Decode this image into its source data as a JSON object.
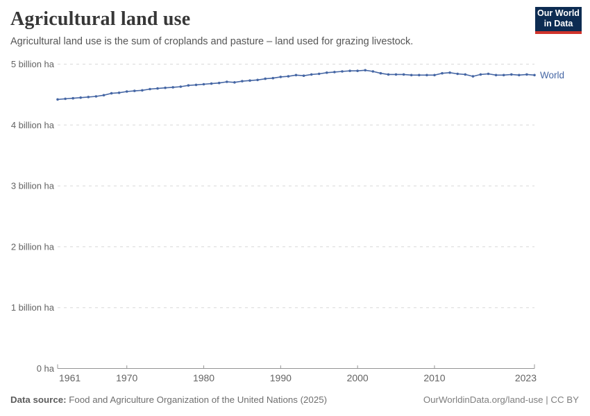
{
  "header": {
    "title": "Agricultural land use",
    "subtitle": "Agricultural land use is the sum of croplands and pasture – land used for grazing livestock.",
    "logo": {
      "line1": "Our World",
      "line2": "in Data"
    }
  },
  "footer": {
    "source_label": "Data source:",
    "source_text": " Food and Agriculture Organization of the United Nations (2025)",
    "credit": "OurWorldinData.org/land-use | CC BY"
  },
  "colors": {
    "series_blue": "#4566a4",
    "logo_navy": "#0d2c52",
    "logo_red": "#d0342c",
    "gridline_gray": "#d8d8d8",
    "axis_gray": "#949494"
  },
  "chart_data": {
    "type": "line",
    "title": "Agricultural land use",
    "xlabel": "",
    "ylabel": "",
    "unit": "billion ha",
    "grid": "horizontal-dashed",
    "legend_position": "end-of-line-label",
    "xlim": [
      1961,
      2023
    ],
    "ylim": [
      0,
      5
    ],
    "x_ticks": [
      1961,
      1970,
      1980,
      1990,
      2000,
      2010,
      2023
    ],
    "y_ticks": [
      {
        "value": 0,
        "label": "0 ha"
      },
      {
        "value": 1,
        "label": "1 billion ha"
      },
      {
        "value": 2,
        "label": "2 billion ha"
      },
      {
        "value": 3,
        "label": "3 billion ha"
      },
      {
        "value": 4,
        "label": "4 billion ha"
      },
      {
        "value": 5,
        "label": "5 billion ha"
      }
    ],
    "x": [
      1961,
      1962,
      1963,
      1964,
      1965,
      1966,
      1967,
      1968,
      1969,
      1970,
      1971,
      1972,
      1973,
      1974,
      1975,
      1976,
      1977,
      1978,
      1979,
      1980,
      1981,
      1982,
      1983,
      1984,
      1985,
      1986,
      1987,
      1988,
      1989,
      1990,
      1991,
      1992,
      1993,
      1994,
      1995,
      1996,
      1997,
      1998,
      1999,
      2000,
      2001,
      2002,
      2003,
      2004,
      2005,
      2006,
      2007,
      2008,
      2009,
      2010,
      2011,
      2012,
      2013,
      2014,
      2015,
      2016,
      2017,
      2018,
      2019,
      2020,
      2021,
      2022,
      2023
    ],
    "series": [
      {
        "name": "World",
        "color": "#4566a4",
        "values": [
          4.42,
          4.43,
          4.44,
          4.45,
          4.46,
          4.47,
          4.49,
          4.52,
          4.53,
          4.55,
          4.56,
          4.57,
          4.59,
          4.6,
          4.61,
          4.62,
          4.63,
          4.65,
          4.66,
          4.67,
          4.68,
          4.69,
          4.71,
          4.7,
          4.72,
          4.73,
          4.74,
          4.76,
          4.77,
          4.79,
          4.8,
          4.82,
          4.81,
          4.83,
          4.84,
          4.86,
          4.87,
          4.88,
          4.89,
          4.89,
          4.9,
          4.88,
          4.85,
          4.83,
          4.83,
          4.83,
          4.82,
          4.82,
          4.82,
          4.82,
          4.85,
          4.86,
          4.84,
          4.83,
          4.8,
          4.83,
          4.84,
          4.82,
          4.82,
          4.83,
          4.82,
          4.83,
          4.82
        ]
      }
    ]
  }
}
